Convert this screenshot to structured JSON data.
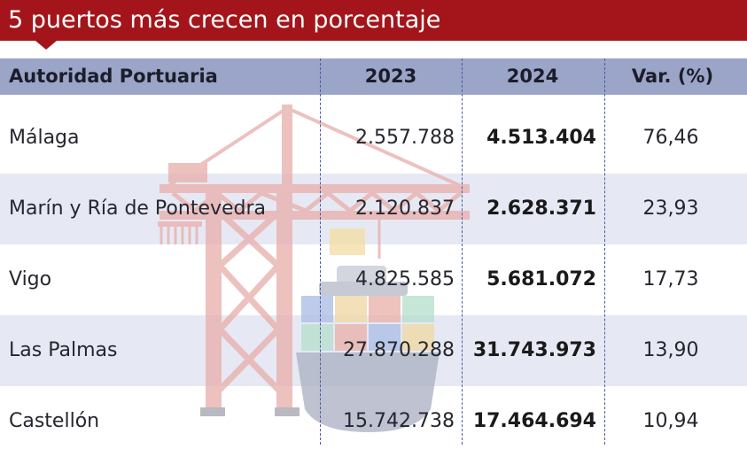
{
  "chart_data": {
    "type": "table",
    "title": "5 puertos más crecen en porcentaje",
    "columns": [
      "Autoridad Portuaria",
      "2023",
      "2024",
      "Var. (%)"
    ],
    "rows": [
      {
        "name": "Málaga",
        "v2023": "2.557.788",
        "v2024": "4.513.404",
        "var": "76,46"
      },
      {
        "name": "Marín y Ría de Pontevedra",
        "v2023": "2.120.837",
        "v2024": "2.628.371",
        "var": "23,93"
      },
      {
        "name": "Vigo",
        "v2023": "4.825.585",
        "v2024": "5.681.072",
        "var": "17,73"
      },
      {
        "name": "Las Palmas",
        "v2023": "27.870.288",
        "v2024": "31.743.973",
        "var": "13,90"
      },
      {
        "name": "Castellón",
        "v2023": "15.742.738",
        "v2024": "17.464.694",
        "var": "10,94"
      }
    ]
  },
  "colors": {
    "title_bg": "#a3151a",
    "header_bg": "#9aa5c7",
    "alt_row_bg": "#e6e9f3",
    "divider": "#4a5aa8",
    "crane": "#e9b0ad",
    "ship": "#aeb4c6"
  },
  "illustration": {
    "icons": [
      "crane-icon",
      "ship-icon",
      "container-icon"
    ]
  }
}
